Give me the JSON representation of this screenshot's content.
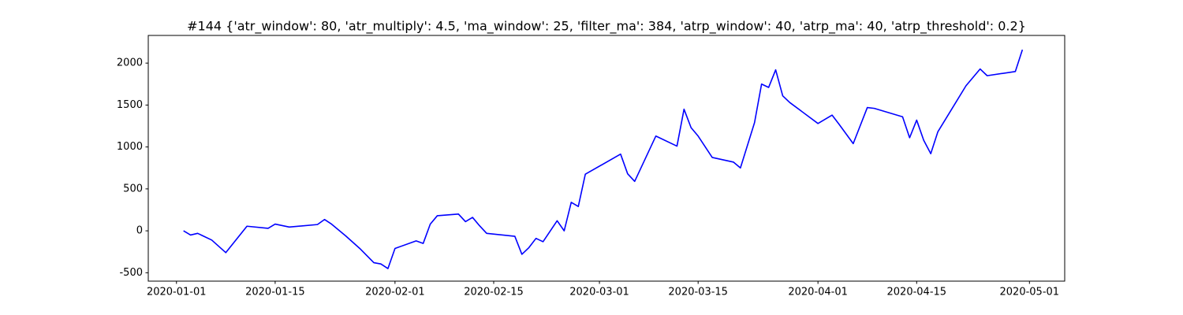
{
  "chart_data": {
    "type": "line",
    "title": "#144 {'atr_window': 80, 'atr_multiply': 4.5, 'ma_window': 25, 'filter_ma': 384, 'atrp_window': 40, 'atrp_ma': 40, 'atrp_threshold': 0.2}",
    "x": [
      "2020-01-02",
      "2020-01-03",
      "2020-01-04",
      "2020-01-06",
      "2020-01-08",
      "2020-01-11",
      "2020-01-14",
      "2020-01-15",
      "2020-01-17",
      "2020-01-21",
      "2020-01-22",
      "2020-01-23",
      "2020-01-25",
      "2020-01-27",
      "2020-01-29",
      "2020-01-30",
      "2020-01-31",
      "2020-02-01",
      "2020-02-04",
      "2020-02-05",
      "2020-02-06",
      "2020-02-07",
      "2020-02-10",
      "2020-02-11",
      "2020-02-12",
      "2020-02-13",
      "2020-02-14",
      "2020-02-18",
      "2020-02-19",
      "2020-02-20",
      "2020-02-21",
      "2020-02-22",
      "2020-02-24",
      "2020-02-25",
      "2020-02-26",
      "2020-02-27",
      "2020-02-28",
      "2020-03-04",
      "2020-03-05",
      "2020-03-06",
      "2020-03-09",
      "2020-03-12",
      "2020-03-13",
      "2020-03-14",
      "2020-03-15",
      "2020-03-17",
      "2020-03-20",
      "2020-03-21",
      "2020-03-23",
      "2020-03-24",
      "2020-03-25",
      "2020-03-26",
      "2020-03-27",
      "2020-03-28",
      "2020-04-01",
      "2020-04-03",
      "2020-04-04",
      "2020-04-06",
      "2020-04-08",
      "2020-04-09",
      "2020-04-13",
      "2020-04-14",
      "2020-04-15",
      "2020-04-16",
      "2020-04-17",
      "2020-04-18",
      "2020-04-22",
      "2020-04-24",
      "2020-04-25",
      "2020-04-29",
      "2020-04-30"
    ],
    "series": [
      {
        "color": "#0000ff",
        "values": [
          0,
          -50,
          -30,
          -110,
          -260,
          55,
          30,
          80,
          45,
          75,
          135,
          80,
          -60,
          -210,
          -380,
          -395,
          -450,
          -210,
          -120,
          -150,
          80,
          180,
          200,
          110,
          160,
          60,
          -30,
          -65,
          -280,
          -200,
          -90,
          -130,
          120,
          0,
          340,
          290,
          675,
          915,
          680,
          590,
          1130,
          1010,
          1450,
          1230,
          1130,
          875,
          820,
          750,
          1290,
          1750,
          1710,
          1920,
          1610,
          1530,
          1280,
          1380,
          1270,
          1040,
          1470,
          1460,
          1360,
          1110,
          1320,
          1080,
          920,
          1180,
          1730,
          1930,
          1850,
          1900,
          2160
        ]
      }
    ],
    "xlim": [
      "2019-12-28",
      "2020-05-06"
    ],
    "xticks": [
      "2020-01-01",
      "2020-01-15",
      "2020-02-01",
      "2020-02-15",
      "2020-03-01",
      "2020-03-15",
      "2020-04-01",
      "2020-04-15",
      "2020-05-01"
    ],
    "ylim": [
      -600,
      2330
    ],
    "yticks": [
      -500,
      0,
      500,
      1000,
      1500,
      2000
    ],
    "grid": false
  }
}
